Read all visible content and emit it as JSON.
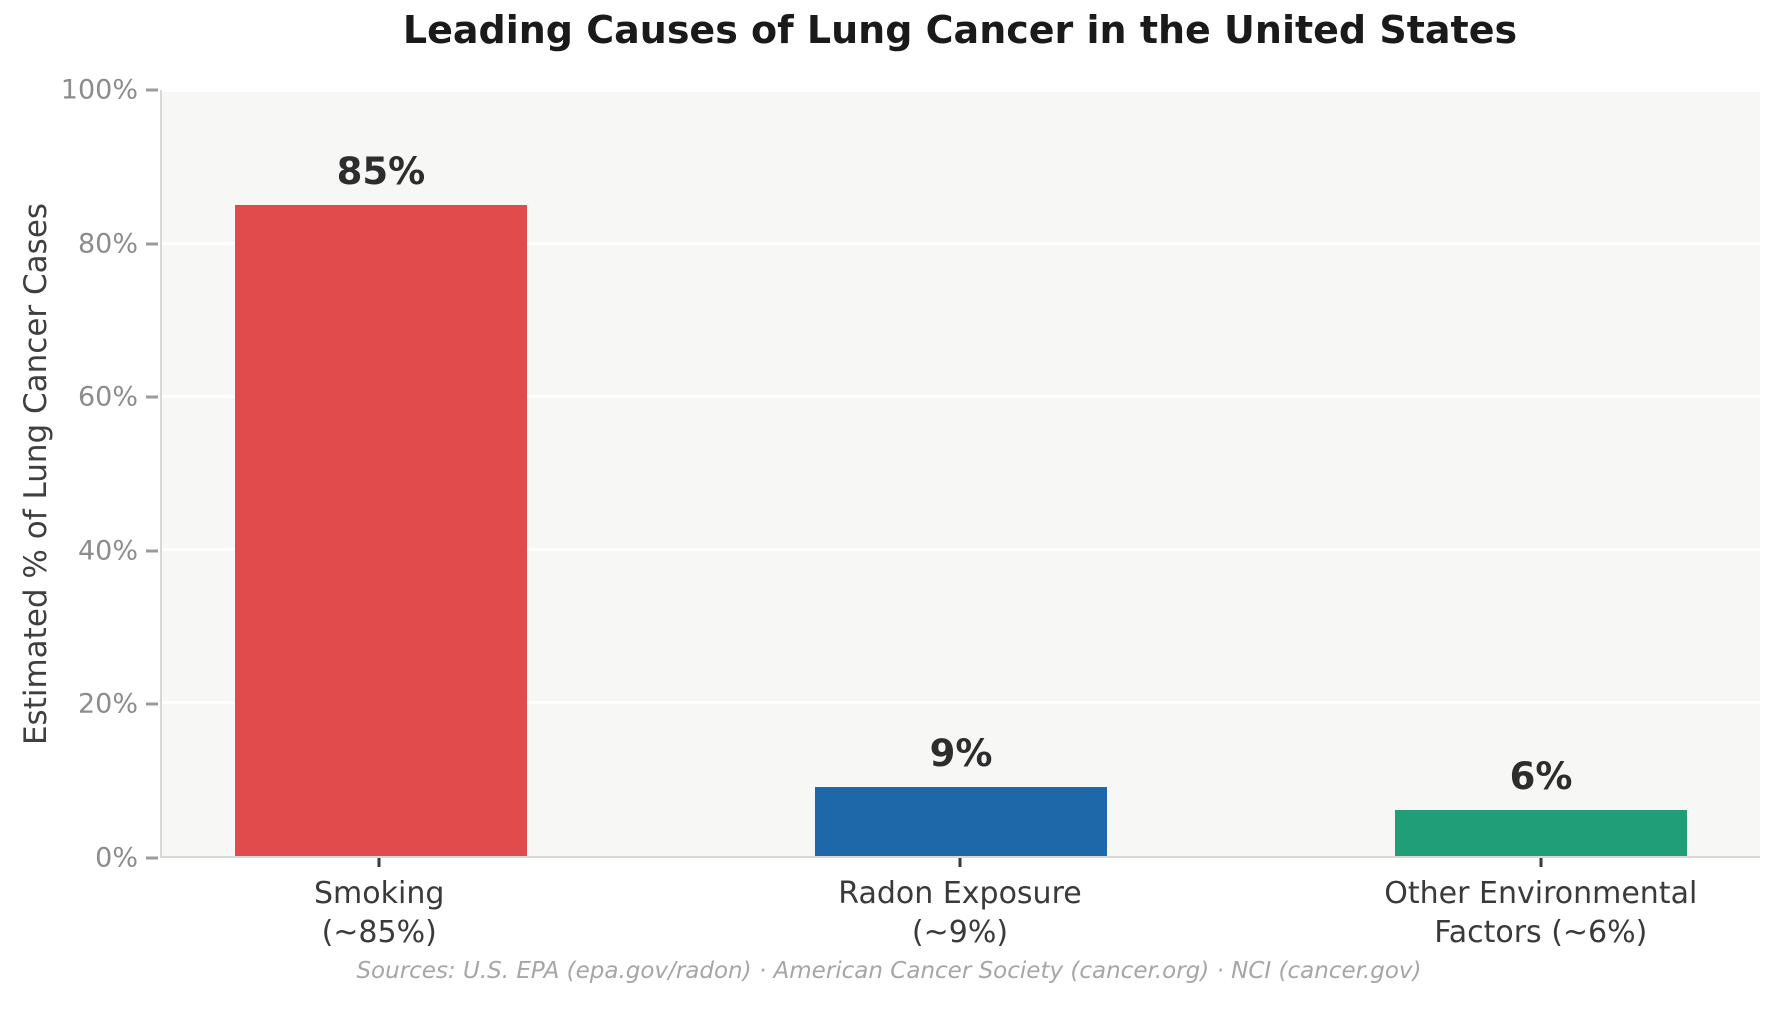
{
  "chart_data": {
    "type": "bar",
    "title": "Leading Causes of Lung Cancer in the United States",
    "ylabel": "Estimated % of Lung Cancer Cases",
    "xlabel": "",
    "ylim": [
      0,
      100
    ],
    "ytick_values": [
      0,
      20,
      40,
      60,
      80,
      100
    ],
    "ytick_labels": [
      "0%",
      "20%",
      "40%",
      "60%",
      "80%",
      "100%"
    ],
    "grid": true,
    "legend": false,
    "categories": [
      [
        "Smoking",
        "(~85%)"
      ],
      [
        "Radon Exposure",
        "(~9%)"
      ],
      [
        "Other Environmental",
        "Factors (~6%)"
      ]
    ],
    "values": [
      85,
      9,
      6
    ],
    "bar_labels": [
      "85%",
      "9%",
      "6%"
    ],
    "bar_colors": [
      "#e14b4b",
      "#1e67a8",
      "#209e78"
    ],
    "source_note": "Sources: U.S. EPA (epa.gov/radon) · American Cancer Society (cancer.org) · NCI (cancer.gov)",
    "colors": {
      "plot_background": "#f7f7f5",
      "gridline": "#ffffff",
      "title_text": "#1a1a1a",
      "ytick_text": "#8c8c8c",
      "xtick_text": "#3a3a3a",
      "ylabel_text": "#3f3f3f",
      "value_label_text": "#2d2d2d",
      "source_text": "#a6a6a6",
      "spine": "#d8d8d5"
    }
  }
}
